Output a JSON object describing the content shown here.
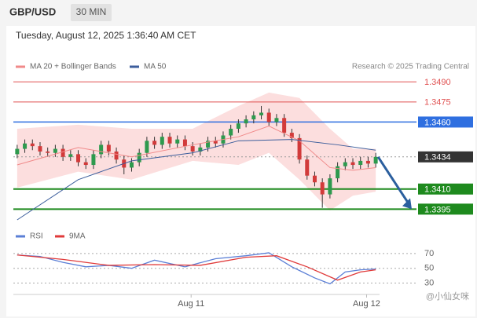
{
  "header": {
    "symbol": "GBP/USD",
    "interval": "30 MIN",
    "timestamp": "Tuesday, August 12, 2025 1:36:40 AM CET"
  },
  "chart_data": [
    {
      "type": "candlestick",
      "attribution": "Research © 2025 Trading Central",
      "up_color": "#2e9a4e",
      "down_color": "#d23a3a",
      "open": [
        1.3436,
        1.344,
        1.3444,
        1.3442,
        1.3438,
        1.3437,
        1.344,
        1.3434,
        1.3436,
        1.343,
        1.3428,
        1.3436,
        1.3443,
        1.3438,
        1.3432,
        1.3426,
        1.343,
        1.3437,
        1.3446,
        1.3443,
        1.3449,
        1.3444,
        1.3447,
        1.3442,
        1.3438,
        1.3441,
        1.3446,
        1.3444,
        1.345,
        1.3455,
        1.3459,
        1.3462,
        1.3465,
        1.3467,
        1.346,
        1.3463,
        1.3452,
        1.3448,
        1.3432,
        1.342,
        1.3415,
        1.3406,
        1.3418,
        1.3427,
        1.343,
        1.3428,
        1.3431,
        1.3429
      ],
      "high": [
        1.3443,
        1.3447,
        1.3447,
        1.3445,
        1.3441,
        1.3443,
        1.3443,
        1.3439,
        1.3439,
        1.3433,
        1.3439,
        1.3446,
        1.3446,
        1.3441,
        1.3435,
        1.3433,
        1.344,
        1.3449,
        1.3449,
        1.3452,
        1.3452,
        1.345,
        1.345,
        1.3445,
        1.3444,
        1.3449,
        1.3449,
        1.3453,
        1.3458,
        1.3462,
        1.3465,
        1.3468,
        1.3472,
        1.347,
        1.3466,
        1.3466,
        1.3455,
        1.3451,
        1.3435,
        1.3423,
        1.3418,
        1.3421,
        1.343,
        1.3433,
        1.3433,
        1.3434,
        1.3434,
        1.3437
      ],
      "low": [
        1.3433,
        1.3437,
        1.3439,
        1.3435,
        1.3434,
        1.3434,
        1.3431,
        1.3431,
        1.3427,
        1.3425,
        1.3425,
        1.3433,
        1.3435,
        1.3429,
        1.3421,
        1.3423,
        1.3427,
        1.3434,
        1.344,
        1.344,
        1.3441,
        1.3441,
        1.3439,
        1.3435,
        1.3435,
        1.3438,
        1.3441,
        1.3441,
        1.3447,
        1.3452,
        1.3456,
        1.3459,
        1.3462,
        1.3457,
        1.3457,
        1.3449,
        1.3445,
        1.3429,
        1.3417,
        1.3412,
        1.3396,
        1.3403,
        1.3415,
        1.3424,
        1.3425,
        1.3425,
        1.3426,
        1.3426
      ],
      "close": [
        1.344,
        1.3444,
        1.3442,
        1.3438,
        1.3437,
        1.344,
        1.3434,
        1.3436,
        1.343,
        1.3428,
        1.3436,
        1.3443,
        1.3438,
        1.3432,
        1.3426,
        1.343,
        1.3437,
        1.3446,
        1.3443,
        1.3449,
        1.3444,
        1.3447,
        1.3442,
        1.3438,
        1.3441,
        1.3446,
        1.3444,
        1.345,
        1.3455,
        1.3459,
        1.3462,
        1.3465,
        1.3467,
        1.346,
        1.3463,
        1.3452,
        1.3448,
        1.3432,
        1.342,
        1.3415,
        1.3406,
        1.3418,
        1.3427,
        1.343,
        1.3428,
        1.3431,
        1.3429,
        1.3434
      ],
      "overlays": [
        {
          "name": "MA 20 + Bollinger Bands",
          "color": "#f08a8a",
          "x": [
            0,
            8,
            15,
            23,
            29,
            33,
            37,
            41,
            44,
            47
          ],
          "values": [
            1.3428,
            1.3441,
            1.3434,
            1.3443,
            1.3449,
            1.3457,
            1.3446,
            1.3426,
            1.3424,
            1.3426
          ],
          "upper": [
            1.3455,
            1.3458,
            1.3455,
            1.3455,
            1.3472,
            1.3482,
            1.3478,
            1.3455,
            1.344,
            1.344
          ],
          "lower": [
            1.3411,
            1.3423,
            1.3417,
            1.3431,
            1.3428,
            1.3437,
            1.3417,
            1.3394,
            1.3405,
            1.3408
          ]
        },
        {
          "name": "MA 50",
          "color": "#3c5e9c",
          "x": [
            0,
            8,
            15,
            23,
            29,
            36,
            42,
            47
          ],
          "values": [
            1.3387,
            1.3417,
            1.3431,
            1.3437,
            1.3446,
            1.3447,
            1.3443,
            1.3439
          ]
        }
      ],
      "levels": [
        {
          "value": 1.349,
          "label": "1.3490",
          "color": "#e05050",
          "box": false
        },
        {
          "value": 1.3475,
          "label": "1.3475",
          "color": "#e05050",
          "box": false
        },
        {
          "value": 1.346,
          "label": "1.3460",
          "color": "#2f6fe0",
          "box": true
        },
        {
          "value": 1.3434,
          "label": "1.3434",
          "color": "#333333",
          "box": true
        },
        {
          "value": 1.341,
          "label": "1.3410",
          "color": "#1e8a1e",
          "box": true
        },
        {
          "value": 1.3395,
          "label": "1.3395",
          "color": "#1e8a1e",
          "box": true
        }
      ],
      "ylim": [
        1.3387,
        1.3496
      ],
      "xlim": [
        -0.5,
        47.5
      ],
      "xticks": [
        {
          "value": 22.8,
          "label": "Aug 11"
        },
        {
          "value": 45.8,
          "label": "Aug 12"
        }
      ]
    },
    {
      "type": "line",
      "xlim": [
        -0.5,
        47.5
      ],
      "ylim": [
        21,
        89
      ],
      "yticks": [
        70,
        50,
        30
      ],
      "series": [
        {
          "name": "RSI",
          "color": "#5b7fd6",
          "x": [
            0,
            3,
            6,
            9,
            12,
            15,
            18,
            22,
            26,
            30,
            33,
            36,
            39,
            41,
            43,
            45,
            47
          ],
          "values": [
            68,
            66,
            58,
            52,
            54,
            50,
            61,
            52,
            63,
            67,
            71,
            52,
            37,
            29,
            45,
            48,
            49
          ]
        },
        {
          "name": "9MA",
          "color": "#e03a3a",
          "x": [
            0,
            6,
            12,
            18,
            24,
            30,
            34,
            38,
            42,
            45,
            47
          ],
          "values": [
            68,
            62,
            54,
            55,
            54,
            65,
            67,
            52,
            34,
            45,
            48
          ]
        }
      ]
    }
  ],
  "watermark": "@小仙女咪"
}
